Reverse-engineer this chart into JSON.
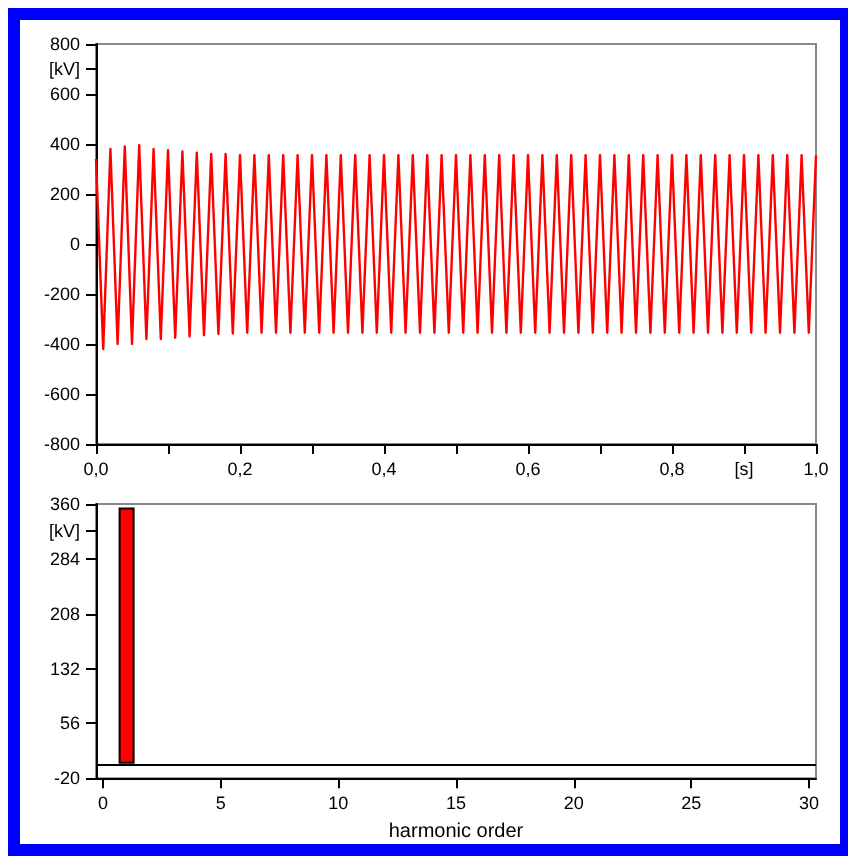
{
  "chart_data": [
    {
      "type": "line",
      "marker": "none",
      "xlim": [
        0,
        1
      ],
      "ylim": [
        -800,
        800
      ],
      "xticks": [
        {
          "value": 0,
          "label": "0,0"
        },
        {
          "value": 0.1,
          "label": null
        },
        {
          "value": 0.2,
          "label": "0,2"
        },
        {
          "value": 0.3,
          "label": null
        },
        {
          "value": 0.4,
          "label": "0,4"
        },
        {
          "value": 0.5,
          "label": null
        },
        {
          "value": 0.6,
          "label": "0,6"
        },
        {
          "value": 0.7,
          "label": null
        },
        {
          "value": 0.8,
          "label": "0,8"
        },
        {
          "value": 0.9,
          "label": "[s]"
        },
        {
          "value": 1,
          "label": "1,0"
        }
      ],
      "yticks": [
        -800,
        -600,
        -400,
        -200,
        0,
        200,
        400,
        600,
        {
          "value": 700,
          "label": "[kV]"
        },
        800
      ],
      "series": [
        {
          "color": "#ff0000",
          "x": [
            0,
            0.01,
            0.02,
            0.03,
            0.04,
            0.05,
            0.06,
            0.07,
            0.08,
            0.09,
            0.1,
            0.11,
            0.12,
            0.13,
            0.14,
            0.15,
            0.16,
            0.17,
            0.18,
            0.19,
            0.2,
            0.21,
            0.22,
            0.23,
            0.24,
            0.25,
            0.26,
            0.27,
            0.28,
            0.29,
            0.3,
            0.31,
            0.32,
            0.33,
            0.34,
            0.35,
            0.36,
            0.37,
            0.38,
            0.39,
            0.4,
            0.41,
            0.42,
            0.43,
            0.44,
            0.45,
            0.46,
            0.47,
            0.48,
            0.49,
            0.5,
            0.51,
            0.52,
            0.53,
            0.54,
            0.55,
            0.56,
            0.57,
            0.58,
            0.59,
            0.6,
            0.61,
            0.62,
            0.63,
            0.64,
            0.65,
            0.66,
            0.67,
            0.68,
            0.69,
            0.7,
            0.71,
            0.72,
            0.73,
            0.74,
            0.75,
            0.76,
            0.77,
            0.78,
            0.79,
            0.8,
            0.81,
            0.82,
            0.83,
            0.84,
            0.85,
            0.86,
            0.87,
            0.88,
            0.89,
            0.9,
            0.91,
            0.92,
            0.93,
            0.94,
            0.95,
            0.96,
            0.97,
            0.98,
            0.99,
            1
          ],
          "values": [
            340,
            -420,
            380,
            -400,
            390,
            -400,
            395,
            -380,
            380,
            -380,
            375,
            -375,
            370,
            -370,
            365,
            -365,
            360,
            -360,
            360,
            -358,
            355,
            -355,
            355,
            -355,
            355,
            -355,
            355,
            -355,
            355,
            -355,
            355,
            -355,
            355,
            -355,
            355,
            -355,
            355,
            -355,
            355,
            -355,
            355,
            -355,
            355,
            -355,
            355,
            -355,
            355,
            -355,
            355,
            -355,
            355,
            -355,
            355,
            -355,
            355,
            -355,
            355,
            -355,
            355,
            -355,
            355,
            -355,
            355,
            -355,
            355,
            -355,
            355,
            -355,
            355,
            -355,
            355,
            -355,
            355,
            -355,
            355,
            -355,
            355,
            -355,
            355,
            -355,
            355,
            -355,
            355,
            -355,
            355,
            -355,
            355,
            -355,
            355,
            -355,
            355,
            -355,
            355,
            -355,
            355,
            -355,
            355,
            -355,
            355,
            -355,
            355
          ]
        }
      ]
    },
    {
      "type": "bar",
      "xlabel": "harmonic order",
      "xlim": [
        -0.3,
        30.3
      ],
      "xticks": [
        0,
        5,
        10,
        15,
        20,
        25,
        30
      ],
      "ylim": [
        -20,
        360
      ],
      "yticks": [
        -20,
        56,
        132,
        208,
        284,
        {
          "value": 322,
          "label": "[kV]"
        },
        360
      ],
      "x": [
        1
      ],
      "values": [
        355
      ],
      "color": "#ff0000",
      "ref_lines": [
        {
          "axis": "y",
          "value": 0,
          "color": "#000000"
        }
      ]
    }
  ]
}
